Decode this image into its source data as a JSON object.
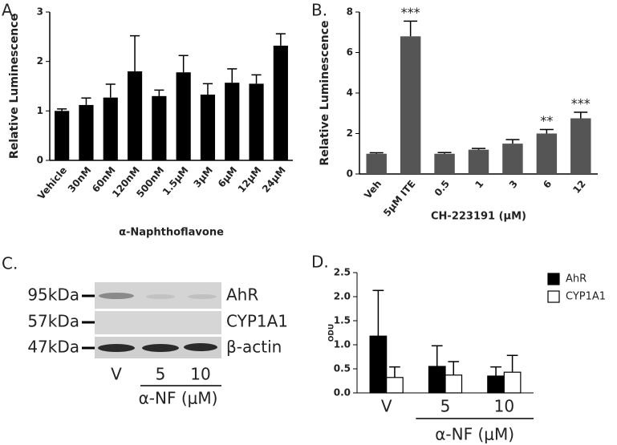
{
  "chart_data": [
    {
      "type": "bar",
      "label": "A.",
      "y_label": "Relative Luminescence",
      "x_label": "α-Naphthoflavone",
      "categories": [
        "Vehicle",
        "30nM",
        "60nM",
        "120nM",
        "500nM",
        "1.5μM",
        "3μM",
        "6μM",
        "12μM",
        "24μM"
      ],
      "values": [
        1.0,
        1.12,
        1.27,
        1.8,
        1.3,
        1.78,
        1.33,
        1.57,
        1.55,
        2.32
      ],
      "errors": [
        0.04,
        0.14,
        0.27,
        0.72,
        0.12,
        0.34,
        0.22,
        0.28,
        0.18,
        0.24
      ],
      "color": "#000000",
      "ylim": [
        0,
        3
      ],
      "yticks": [
        0,
        1,
        2,
        3
      ]
    },
    {
      "type": "bar",
      "label": "B.",
      "y_label": "Relative Luminescence",
      "x_label": "CH-223191 (μM)",
      "categories": [
        "Veh",
        "5μM ITE",
        "0.5",
        "1",
        "3",
        "6",
        "12"
      ],
      "values": [
        1.0,
        6.8,
        1.0,
        1.2,
        1.5,
        2.0,
        2.75
      ],
      "errors": [
        0.05,
        0.75,
        0.06,
        0.06,
        0.2,
        0.2,
        0.3
      ],
      "significance": [
        null,
        "***",
        null,
        null,
        null,
        "**",
        "***"
      ],
      "color": "#555555",
      "ylim": [
        0,
        8
      ],
      "yticks": [
        0,
        2,
        4,
        6,
        8
      ]
    },
    {
      "type": "bar",
      "label": "D.",
      "y_label": "ODU",
      "group_label": "α-NF (μM)",
      "categories": [
        "V",
        "5",
        "10"
      ],
      "series": [
        {
          "name": "AhR",
          "color": "#000000",
          "values": [
            1.18,
            0.55,
            0.35
          ],
          "errors": [
            0.95,
            0.43,
            0.19
          ]
        },
        {
          "name": "CYP1A1",
          "color": "#ffffff",
          "values": [
            0.32,
            0.37,
            0.43
          ],
          "errors": [
            0.22,
            0.28,
            0.35
          ]
        }
      ],
      "legend": "top-right",
      "ylim": [
        0,
        2.5
      ],
      "yticks": [
        {
          "value": 0,
          "label": "0.0"
        },
        0.5,
        {
          "value": 1,
          "label": "1.0"
        },
        1.5,
        {
          "value": 2,
          "label": "2.0"
        },
        2.5
      ]
    }
  ],
  "blot": {
    "label": "C.",
    "markers": [
      "95kDa",
      "57kDa",
      "47kDa"
    ],
    "bands": [
      "AhR",
      "CYP1A1",
      "β-actin"
    ],
    "lanes": [
      "V",
      "5",
      "10"
    ],
    "group_label": "α-NF (μM)"
  }
}
